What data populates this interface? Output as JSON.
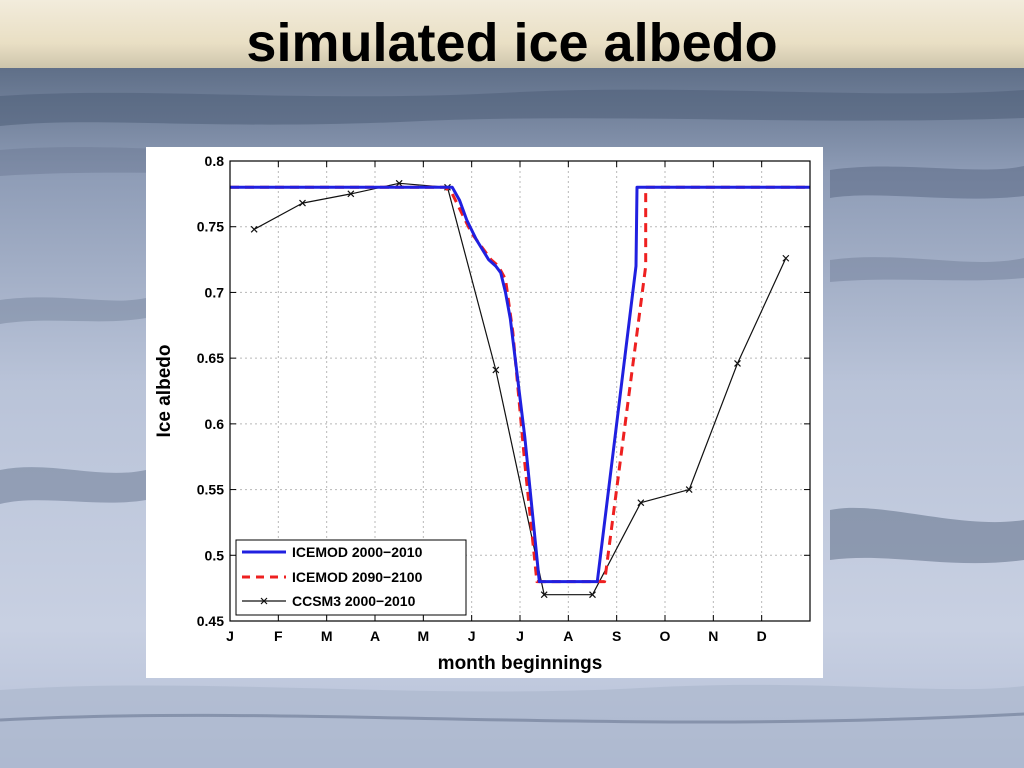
{
  "slide": {
    "title": "simulated ice albedo"
  },
  "colors": {
    "icemod_2000": "#2020e0",
    "icemod_2090": "#ee2020",
    "ccsm3": "#111111",
    "grid": "#b8b8b8"
  },
  "background_image": {
    "icon": "arctic-sea-ice-photo"
  },
  "chart_data": {
    "type": "line",
    "title": "",
    "xlabel": "month beginnings",
    "ylabel": "Ice albedo",
    "xlim": [
      0,
      12
    ],
    "ylim": [
      0.45,
      0.8
    ],
    "grid": true,
    "legend_position": "bottom-left",
    "x_ticks": [
      "J",
      "F",
      "M",
      "A",
      "M",
      "J",
      "J",
      "A",
      "S",
      "O",
      "N",
      "D"
    ],
    "y_ticks": [
      "0.45",
      "0.5",
      "0.55",
      "0.6",
      "0.65",
      "0.7",
      "0.75",
      "0.8"
    ],
    "y_tick_values": [
      0.45,
      0.5,
      0.55,
      0.6,
      0.65,
      0.7,
      0.75,
      0.8
    ],
    "series": [
      {
        "name": "ICEMOD 2000−2010",
        "style": "solid",
        "color": "#2020e0",
        "x": [
          0,
          4.6,
          4.75,
          4.9,
          5.1,
          5.35,
          5.5,
          5.6,
          5.7,
          5.8,
          6.1,
          6.4,
          7.6,
          8.4,
          8.42,
          12
        ],
        "y": [
          0.78,
          0.78,
          0.77,
          0.755,
          0.74,
          0.725,
          0.72,
          0.715,
          0.7,
          0.68,
          0.59,
          0.48,
          0.48,
          0.72,
          0.78,
          0.78
        ]
      },
      {
        "name": "ICEMOD 2090−2100",
        "style": "dashed",
        "color": "#ee2020",
        "x": [
          0,
          4.45,
          4.6,
          4.8,
          5.0,
          5.2,
          5.4,
          5.55,
          5.7,
          5.85,
          6.1,
          6.35,
          7.75,
          8.6,
          8.6,
          12
        ],
        "y": [
          0.78,
          0.78,
          0.775,
          0.76,
          0.745,
          0.735,
          0.725,
          0.72,
          0.71,
          0.67,
          0.57,
          0.48,
          0.48,
          0.72,
          0.78,
          0.78
        ]
      },
      {
        "name": "CCSM3 2000−2010",
        "style": "solid-marker-x",
        "color": "#111111",
        "x": [
          0.5,
          1.5,
          2.5,
          3.5,
          4.5,
          5.5,
          6.5,
          7.5,
          8.5,
          9.5,
          10.5,
          11.5
        ],
        "y": [
          0.748,
          0.768,
          0.775,
          0.783,
          0.78,
          0.641,
          0.47,
          0.47,
          0.54,
          0.55,
          0.646,
          0.726
        ]
      }
    ]
  }
}
